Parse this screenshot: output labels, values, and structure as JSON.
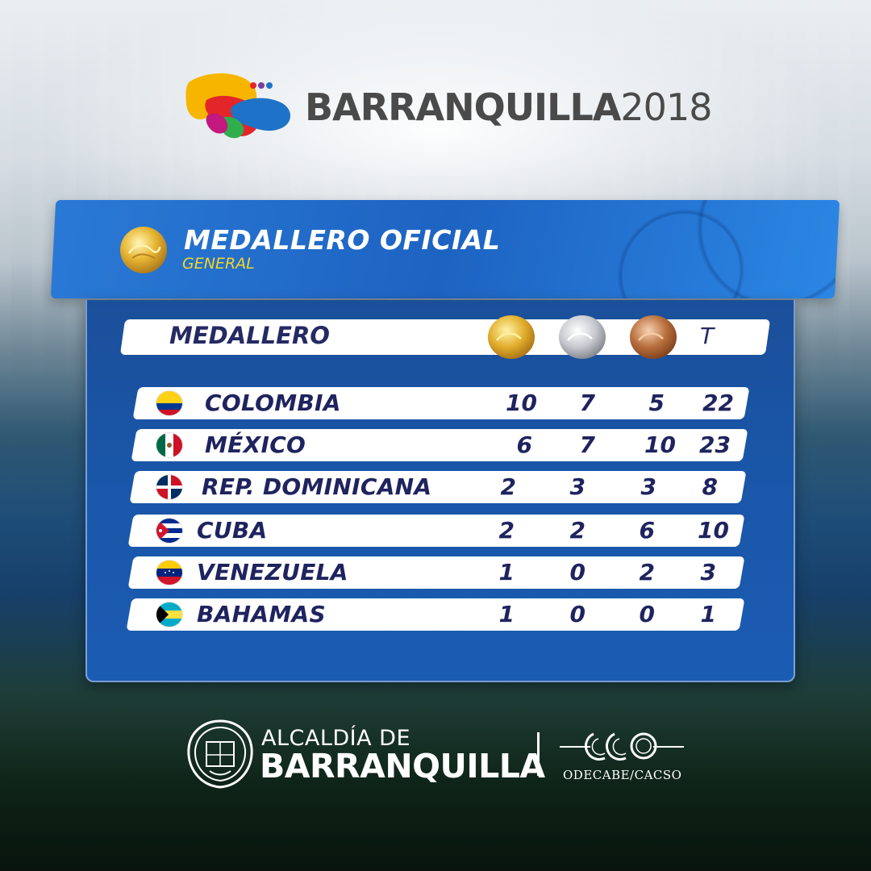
{
  "brand": {
    "name": "BARRANQUILLA",
    "year": "2018"
  },
  "banner": {
    "title": "MEDALLERO OFICIAL",
    "subtitle": "GENERAL",
    "medal_icon": "gold-medal-icon"
  },
  "table": {
    "header": {
      "label": "MEDALLERO",
      "gold_icon": "gold-medal-icon",
      "silver_icon": "silver-medal-icon",
      "bronze_icon": "bronze-medal-icon",
      "total_label": "T"
    },
    "rows": [
      {
        "country": "COLOMBIA",
        "flag": "colombia-flag-icon",
        "gold": "10",
        "silver": "7",
        "bronze": "5",
        "total": "22"
      },
      {
        "country": "MÉXICO",
        "flag": "mexico-flag-icon",
        "gold": "6",
        "silver": "7",
        "bronze": "10",
        "total": "23"
      },
      {
        "country": "REP. DOMINICANA",
        "flag": "dominican-republic-flag-icon",
        "gold": "2",
        "silver": "3",
        "bronze": "3",
        "total": "8"
      },
      {
        "country": "CUBA",
        "flag": "cuba-flag-icon",
        "gold": "2",
        "silver": "2",
        "bronze": "6",
        "total": "10"
      },
      {
        "country": "VENEZUELA",
        "flag": "venezuela-flag-icon",
        "gold": "1",
        "silver": "0",
        "bronze": "2",
        "total": "3"
      },
      {
        "country": "BAHAMAS",
        "flag": "bahamas-flag-icon",
        "gold": "1",
        "silver": "0",
        "bronze": "0",
        "total": "1"
      }
    ]
  },
  "footer": {
    "line1": "ALCALDÍA DE",
    "line2": "BARRANQUILLA",
    "partner": "ODECABE/CACSO"
  },
  "colors": {
    "panel": "#1b56a8",
    "banner": "#2270cc",
    "accent_yellow": "#f5d623",
    "row_text": "#1f235e"
  }
}
